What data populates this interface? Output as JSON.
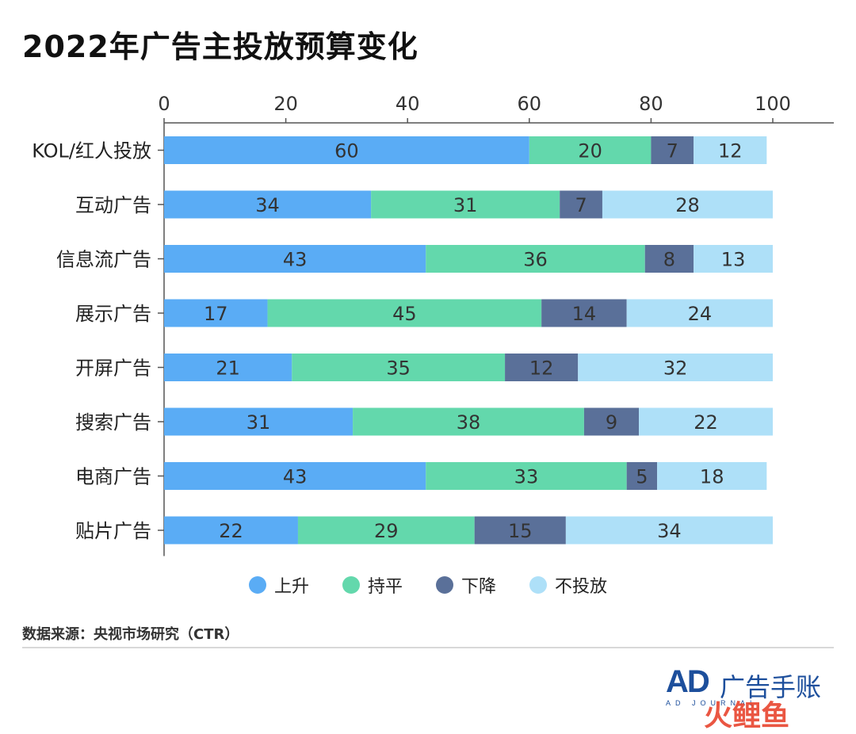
{
  "title": "2022年广告主投放预算变化",
  "source": "数据来源：央视市场研究（CTR）",
  "logo": {
    "brand": "AD",
    "brand_cn": "广告手账",
    "subline": "AD JOURNAL",
    "watermark": "火鲤鱼"
  },
  "chart_data": {
    "type": "bar",
    "orientation": "horizontal",
    "stacked": true,
    "title": "2022年广告主投放预算变化",
    "xlim": [
      0,
      100
    ],
    "x_ticks": [
      0,
      20,
      40,
      60,
      80,
      100
    ],
    "x_axis_position": "top",
    "categories": [
      "KOL/红人投放",
      "互动广告",
      "信息流广告",
      "展示广告",
      "开屏广告",
      "搜索广告",
      "电商广告",
      "贴片广告"
    ],
    "series": [
      {
        "name": "上升",
        "color": "#5aacf5",
        "values": [
          60,
          34,
          43,
          17,
          21,
          31,
          43,
          22
        ]
      },
      {
        "name": "持平",
        "color": "#63d8ac",
        "values": [
          20,
          31,
          36,
          45,
          35,
          38,
          33,
          29
        ]
      },
      {
        "name": "下降",
        "color": "#5a7099",
        "values": [
          7,
          7,
          8,
          14,
          12,
          9,
          5,
          15
        ]
      },
      {
        "name": "不投放",
        "color": "#aee0f8",
        "values": [
          12,
          28,
          13,
          24,
          32,
          22,
          18,
          34
        ]
      }
    ],
    "legend_position": "bottom",
    "grid": false
  }
}
